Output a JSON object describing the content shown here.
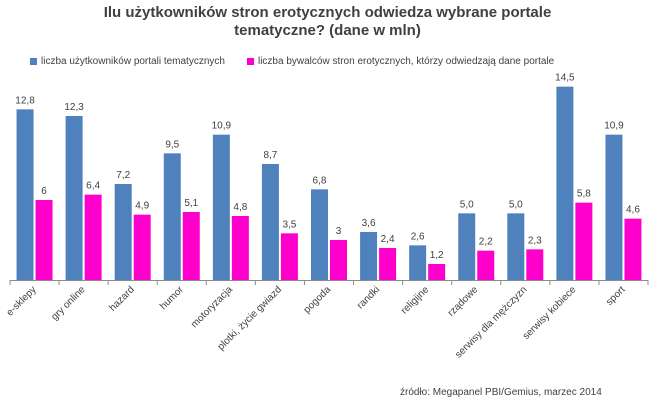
{
  "chart_data": {
    "type": "bar",
    "title_lines": [
      "Ilu użytkowników  stron erotycznych  odwiedza wybrane portale",
      "tematyczne? (dane w mln)"
    ],
    "categories": [
      "e-sklepy",
      "gry online",
      "hazard",
      "humor",
      "motoryzacja",
      "plotki, życie gwiazd",
      "pogoda",
      "randki",
      "religijne",
      "rządowe",
      "serwisy dla mężczyzn",
      "serwisy kobiece",
      "sport"
    ],
    "series": [
      {
        "name": "liczba użytkowników portali tematycznych",
        "color": "#4f81bd",
        "values": [
          12.8,
          12.3,
          7.2,
          9.5,
          10.9,
          8.7,
          6.8,
          3.6,
          2.6,
          5.0,
          5.0,
          14.5,
          10.9
        ],
        "labels": [
          "12,8",
          "12,3",
          "7,2",
          "9,5",
          "10,9",
          "8,7",
          "6,8",
          "3,6",
          "2,6",
          "5,0",
          "5,0",
          "14,5",
          "10,9"
        ]
      },
      {
        "name": "liczba bywalców stron erotycznych, którzy odwiedzają dane portale",
        "color": "#ff00cc",
        "values": [
          6,
          6.4,
          4.9,
          5.1,
          4.8,
          3.5,
          3,
          2.4,
          1.2,
          2.2,
          2.3,
          5.8,
          4.6
        ],
        "labels": [
          "6",
          "6,4",
          "4,9",
          "5,1",
          "4,8",
          "3,5",
          "3",
          "2,4",
          "1,2",
          "2,2",
          "2,3",
          "5,8",
          "4,6"
        ]
      }
    ],
    "ylim": [
      0,
      15
    ],
    "grid": false,
    "legend_position": "top-left"
  },
  "source": "źródło:  Megapanel  PBI/Gemius,  marzec 2014"
}
